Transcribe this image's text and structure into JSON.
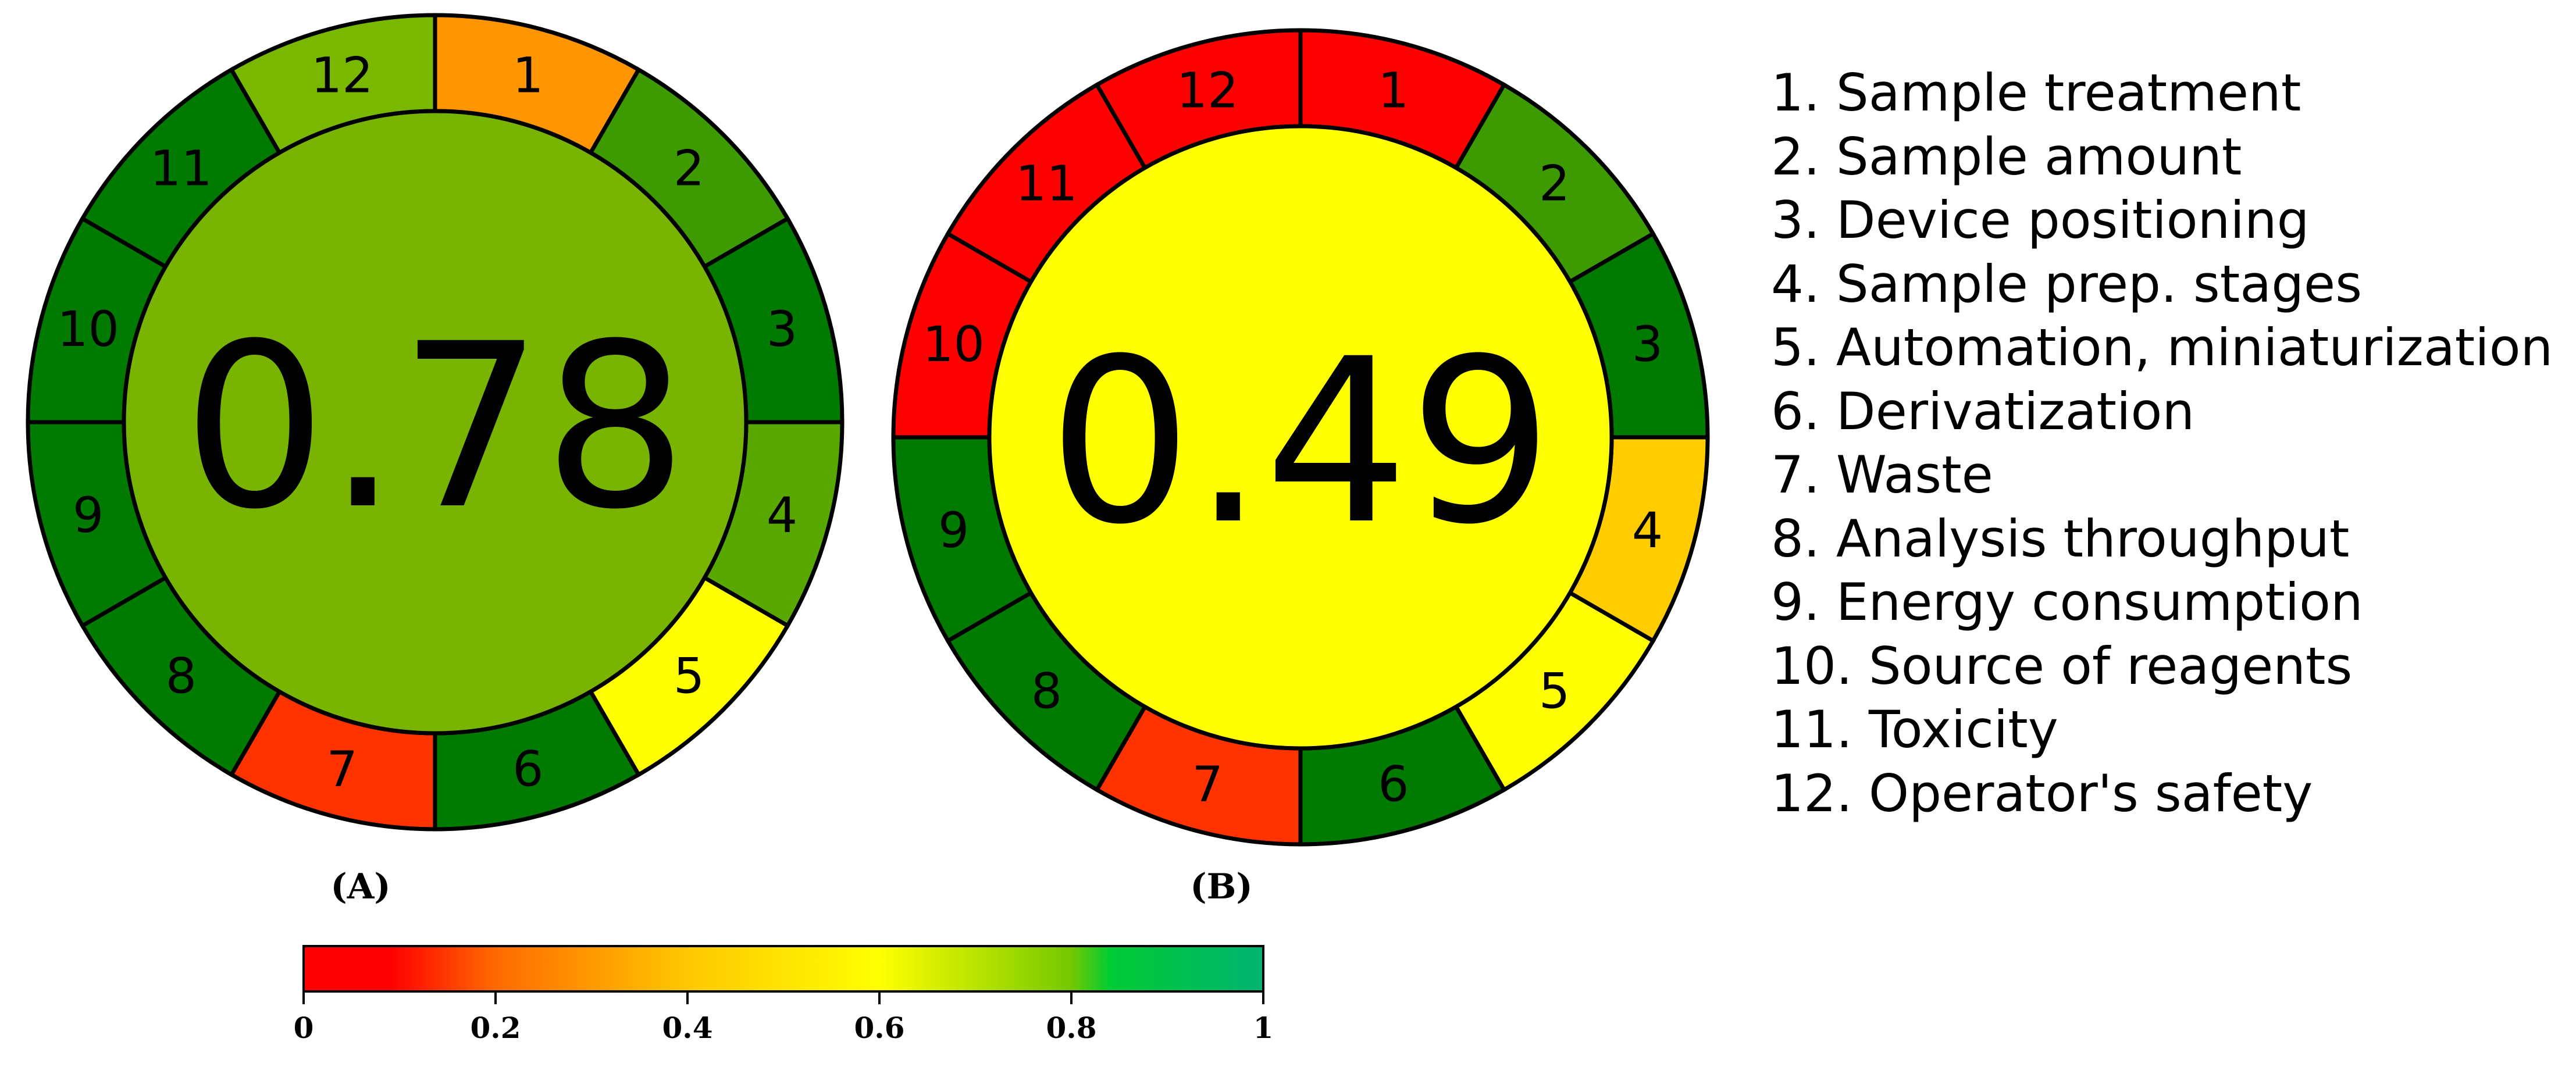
{
  "figure": {
    "panels": [
      {
        "label": "(A)",
        "score": "0.78",
        "center_color": "#78b400",
        "segments": [
          {
            "num": "1",
            "color": "#ff9500"
          },
          {
            "num": "2",
            "color": "#3d9a00"
          },
          {
            "num": "3",
            "color": "#007a00"
          },
          {
            "num": "4",
            "color": "#59a800"
          },
          {
            "num": "5",
            "color": "#ffff00"
          },
          {
            "num": "6",
            "color": "#007a00"
          },
          {
            "num": "7",
            "color": "#ff3300"
          },
          {
            "num": "8",
            "color": "#007a00"
          },
          {
            "num": "9",
            "color": "#007a00"
          },
          {
            "num": "10",
            "color": "#007a00"
          },
          {
            "num": "11",
            "color": "#007a00"
          },
          {
            "num": "12",
            "color": "#7ab800"
          }
        ]
      },
      {
        "label": "(B)",
        "score": "0.49",
        "center_color": "#ffff00",
        "segments": [
          {
            "num": "1",
            "color": "#ff0000"
          },
          {
            "num": "2",
            "color": "#3d9a00"
          },
          {
            "num": "3",
            "color": "#007a00"
          },
          {
            "num": "4",
            "color": "#ffcc00"
          },
          {
            "num": "5",
            "color": "#ffff00"
          },
          {
            "num": "6",
            "color": "#007a00"
          },
          {
            "num": "7",
            "color": "#ff3300"
          },
          {
            "num": "8",
            "color": "#007a00"
          },
          {
            "num": "9",
            "color": "#007a00"
          },
          {
            "num": "10",
            "color": "#ff0000"
          },
          {
            "num": "11",
            "color": "#ff0000"
          },
          {
            "num": "12",
            "color": "#ff0000"
          }
        ]
      }
    ],
    "criteria": [
      "1. Sample treatment",
      "2. Sample amount",
      "3. Device positioning",
      "4. Sample prep. stages",
      "5. Automation, miniaturization",
      "6. Derivatization",
      "7. Waste",
      "8. Analysis throughput",
      "9. Energy consumption",
      "10. Source of reagents",
      "11. Toxicity",
      "12. Operator's safety"
    ],
    "colorbar": {
      "ticks": [
        "0",
        "0.2",
        "0.4",
        "0.6",
        "0.8",
        "1"
      ],
      "tick_values": [
        0,
        0.2,
        0.4,
        0.6,
        0.8,
        1
      ],
      "gradient": [
        {
          "value": 0,
          "color": "#ff0000"
        },
        {
          "value": 0.09,
          "color": "#ff0000"
        },
        {
          "value": 0.2,
          "color": "#ff6a00"
        },
        {
          "value": 0.4,
          "color": "#ffc800"
        },
        {
          "value": 0.6,
          "color": "#ffff00"
        },
        {
          "value": 0.8,
          "color": "#74c800"
        },
        {
          "value": 0.84,
          "color": "#00cc33"
        },
        {
          "value": 1,
          "color": "#00b371"
        }
      ]
    }
  }
}
